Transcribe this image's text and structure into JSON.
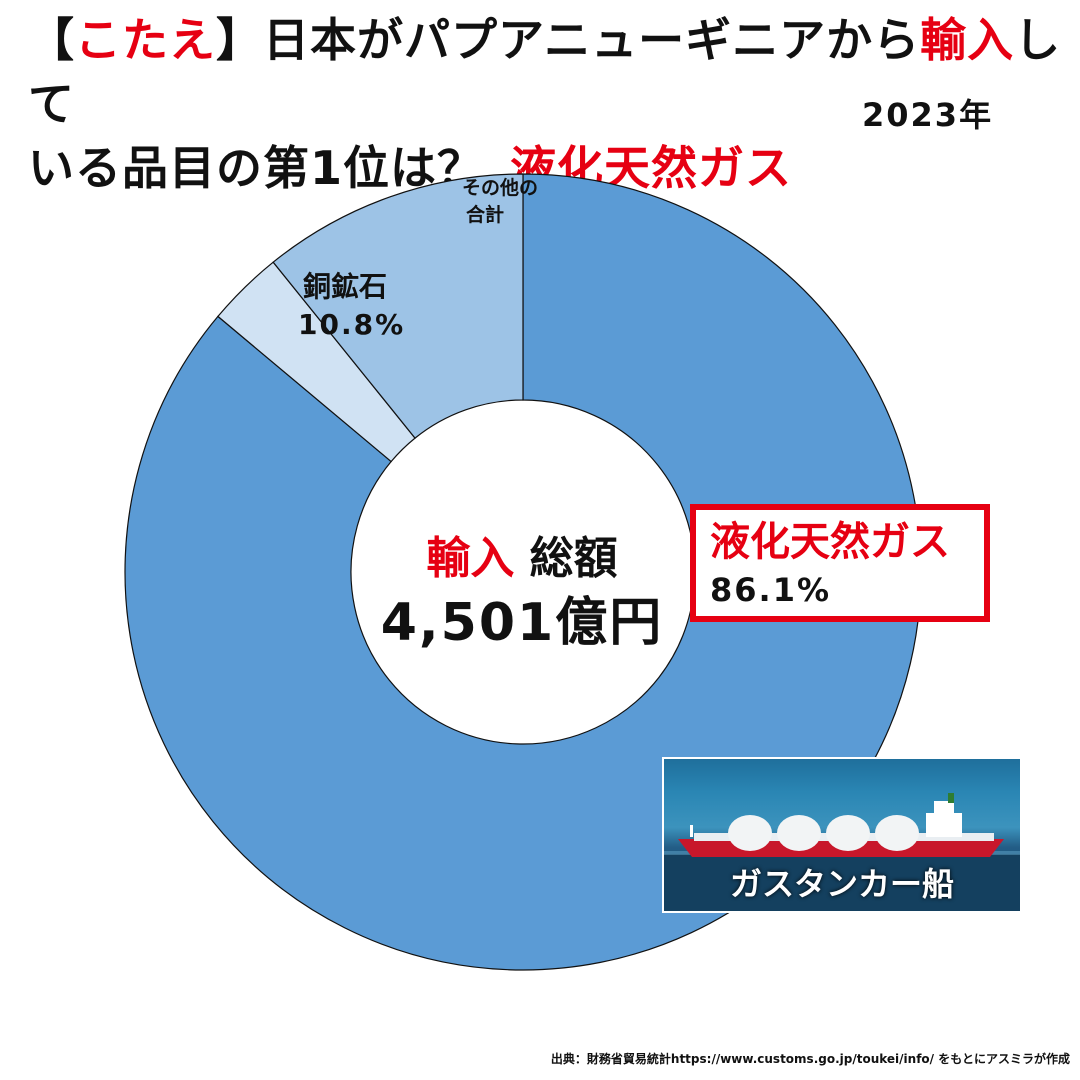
{
  "title": {
    "bracket_open": "【",
    "kotae": "こたえ",
    "bracket_close": "】",
    "part1": "日本がパプアニューギニアから",
    "import_word": "輸入",
    "part2": "して",
    "line2": "いる品目の第1位は？",
    "answer": "液化天然ガス"
  },
  "year": "2023年",
  "center": {
    "import_word": "輸入",
    "total_label": "総額",
    "total_value": "4,501億円"
  },
  "callout": {
    "name": "液化天然ガス",
    "value": "86.1%"
  },
  "photo": {
    "caption": "ガスタンカー船"
  },
  "source": "出典：財務省貿易統計https://www.customs.go.jp/toukei/info/ をもとにアスミラが作成",
  "chart_data": {
    "type": "pie",
    "donut": true,
    "start_angle_deg": 0,
    "direction": "clockwise",
    "total": "4,501億円",
    "slices": [
      {
        "name": "液化天然ガス",
        "value": 86.1,
        "label_value": "86.1%",
        "color": "#5b9bd5"
      },
      {
        "name": "その他の合計",
        "value": 3.1,
        "label_value": "",
        "color": "#d0e2f3"
      },
      {
        "name": "銅鉱石",
        "value": 10.8,
        "label_value": "10.8%",
        "color": "#9dc3e6"
      }
    ]
  },
  "labels": {
    "copper_name": "銅鉱石",
    "copper_value": "10.8%",
    "other_line1": "その他の",
    "other_line2": "合計"
  }
}
